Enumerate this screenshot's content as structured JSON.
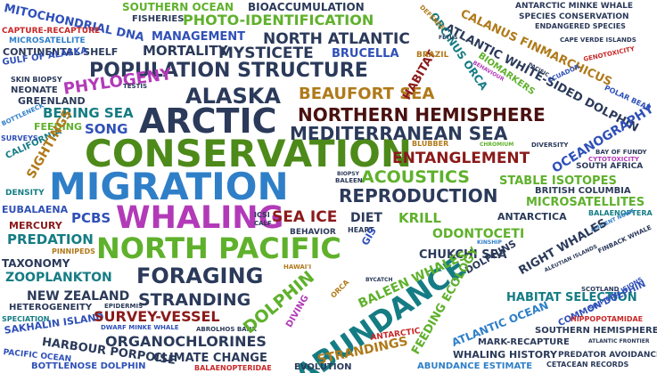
{
  "words": [
    {
      "text": "CONSERVATION",
      "color": "#4d8a1a"
    },
    {
      "text": "MIGRATION",
      "color": "#2f7fc8"
    },
    {
      "text": "ARCTIC",
      "color": "#2b3a5a"
    },
    {
      "text": "WHALING",
      "color": "#b23ab8"
    },
    {
      "text": "NORTH PACIFIC",
      "color": "#5fb12c"
    },
    {
      "text": "ABUNDANCE",
      "color": "#157c84"
    },
    {
      "text": "POPULATION STRUCTURE",
      "color": "#2b3a5a"
    },
    {
      "text": "NORTHERN HEMISPHERE",
      "color": "#4a1010"
    },
    {
      "text": "MEDITERRANEAN SEA",
      "color": "#2b3a5a"
    },
    {
      "text": "ALASKA",
      "color": "#2b3a5a"
    },
    {
      "text": "FORAGING",
      "color": "#2b3a5a"
    },
    {
      "text": "REPRODUCTION",
      "color": "#2b3a5a"
    },
    {
      "text": "ENTANGLEMENT",
      "color": "#8b1a1a"
    },
    {
      "text": "ACOUSTICS",
      "color": "#5fb12c"
    },
    {
      "text": "BEAUFORT SEA",
      "color": "#b07a1a"
    },
    {
      "text": "PHYLOGENY",
      "color": "#b23ab8"
    },
    {
      "text": "MYSTICETE",
      "color": "#2b3a5a"
    },
    {
      "text": "NORTH ATLANTIC",
      "color": "#2b3a5a"
    },
    {
      "text": "MORTALITY",
      "color": "#2b3a5a"
    },
    {
      "text": "PHOTO-IDENTIFICATION",
      "color": "#5fb12c"
    },
    {
      "text": "MANAGEMENT",
      "color": "#2f50b8"
    },
    {
      "text": "BIOACCUMULATION",
      "color": "#2b3a5a"
    },
    {
      "text": "SOUTHERN OCEAN",
      "color": "#5fb12c"
    },
    {
      "text": "FISHERIES",
      "color": "#2b3a5a"
    },
    {
      "text": "MITOCHONDRIAL DNA",
      "color": "#2f50b8"
    },
    {
      "text": "CAPTURE-RECAPTURE",
      "color": "#c82828"
    },
    {
      "text": "MICROSATELLITE",
      "color": "#2f7fc8"
    },
    {
      "text": "CONTINENTAL SHELF",
      "color": "#2b3a5a"
    },
    {
      "text": "GULF OF ALASKA",
      "color": "#2f50b8"
    },
    {
      "text": "BRUCELLA",
      "color": "#2f50b8"
    },
    {
      "text": "SKIN BIOPSY",
      "color": "#2b3a5a"
    },
    {
      "text": "NEONATE",
      "color": "#2b3a5a"
    },
    {
      "text": "GREENLAND",
      "color": "#2b3a5a"
    },
    {
      "text": "TESTIS",
      "color": "#2b3a5a"
    },
    {
      "text": "BERING SEA",
      "color": "#157c84"
    },
    {
      "text": "SONG",
      "color": "#2f50b8"
    },
    {
      "text": "FEEDING",
      "color": "#5fb12c"
    },
    {
      "text": "BOTTLENECK",
      "color": "#2f7fc8"
    },
    {
      "text": "CALIFORNIA",
      "color": "#157c84"
    },
    {
      "text": "SURVEYS",
      "color": "#2f50b8"
    },
    {
      "text": "SIGHTINGS",
      "color": "#b07a1a"
    },
    {
      "text": "DENSITY",
      "color": "#157c84"
    },
    {
      "text": "EUBALAENA",
      "color": "#2f50b8"
    },
    {
      "text": "PCBS",
      "color": "#2f50b8"
    },
    {
      "text": "MERCURY",
      "color": "#8b1a1a"
    },
    {
      "text": "PREDATION",
      "color": "#157c84"
    },
    {
      "text": "PINNIPEDS",
      "color": "#b07a1a"
    },
    {
      "text": "TAXONOMY",
      "color": "#2b3a5a"
    },
    {
      "text": "ZOOPLANKTON",
      "color": "#157c84"
    },
    {
      "text": "NEW ZEALAND",
      "color": "#2b3a5a"
    },
    {
      "text": "HETEROGENEITY",
      "color": "#2b3a5a"
    },
    {
      "text": "SPECIATION",
      "color": "#157c84"
    },
    {
      "text": "SAKHALIN ISLAND",
      "color": "#2f50b8"
    },
    {
      "text": "HARBOUR PORPOISE",
      "color": "#2b3a5a"
    },
    {
      "text": "PACIFIC OCEAN",
      "color": "#2f50b8"
    },
    {
      "text": "BOTTLENOSE DOLPHIN",
      "color": "#2f50b8"
    },
    {
      "text": "STRANDING",
      "color": "#2b3a5a"
    },
    {
      "text": "EPIDERMIS",
      "color": "#2b3a5a"
    },
    {
      "text": "SURVEY-VESSEL",
      "color": "#8b1a1a"
    },
    {
      "text": "DWARF MINKE WHALE",
      "color": "#2f50b8"
    },
    {
      "text": "ABROLHOS BANK",
      "color": "#2b3a5a"
    },
    {
      "text": "ORGANOCHLORINES",
      "color": "#2b3a5a"
    },
    {
      "text": "CLIMATE CHANGE",
      "color": "#2b3a5a"
    },
    {
      "text": "BALAENOPTERIDAE",
      "color": "#c82828"
    },
    {
      "text": "EVOLUTION",
      "color": "#2b3a5a"
    },
    {
      "text": "STRANDINGS",
      "color": "#b07a1a"
    },
    {
      "text": "ICSI",
      "color": "#2b3a5a"
    },
    {
      "text": "CALF",
      "color": "#2b3a5a"
    },
    {
      "text": "SEA ICE",
      "color": "#8b1a1a"
    },
    {
      "text": "DIET",
      "color": "#2b3a5a"
    },
    {
      "text": "KRILL",
      "color": "#5fb12c"
    },
    {
      "text": "BEHAVIOR",
      "color": "#2b3a5a"
    },
    {
      "text": "HEART",
      "color": "#2b3a5a"
    },
    {
      "text": "GIS",
      "color": "#2f50b8"
    },
    {
      "text": "BIOPSY",
      "color": "#2b3a5a"
    },
    {
      "text": "BALEEN",
      "color": "#2b3a5a"
    },
    {
      "text": "BLUBBER",
      "color": "#b07a1a"
    },
    {
      "text": "CHROMIUM",
      "color": "#5fb12c"
    },
    {
      "text": "DIVERSITY",
      "color": "#2b3a5a"
    },
    {
      "text": "STABLE ISOTOPES",
      "color": "#5fb12c"
    },
    {
      "text": "BRITISH COLUMBIA",
      "color": "#2b3a5a"
    },
    {
      "text": "MICROSATELLITES",
      "color": "#5fb12c"
    },
    {
      "text": "ANTARCTICA",
      "color": "#2b3a5a"
    },
    {
      "text": "BALAENOPTERA",
      "color": "#157c84"
    },
    {
      "text": "ODONTOCETI",
      "color": "#5fb12c"
    },
    {
      "text": "AMBIENT NOISE",
      "color": "#2f7fc8"
    },
    {
      "text": "KINSHIP",
      "color": "#2f7fc8"
    },
    {
      "text": "CHUKCHI SEA",
      "color": "#2b3a5a"
    },
    {
      "text": "RIGHT WHALES",
      "color": "#2b3a5a"
    },
    {
      "text": "DOLPHINS",
      "color": "#2b3a5a"
    },
    {
      "text": "FINBACK WHALE",
      "color": "#2b3a5a"
    },
    {
      "text": "ALEUTIAN ISLANDS",
      "color": "#2b3a5a"
    },
    {
      "text": "HABITAT SELECTION",
      "color": "#157c84"
    },
    {
      "text": "BALEEN WHALES",
      "color": "#5fb12c"
    },
    {
      "text": "DOLPHIN",
      "color": "#5fb12c"
    },
    {
      "text": "HAWAI'I",
      "color": "#b07a1a"
    },
    {
      "text": "BYCATCH",
      "color": "#2b3a5a"
    },
    {
      "text": "DIVING",
      "color": "#b23ab8"
    },
    {
      "text": "ORCA",
      "color": "#b07a1a"
    },
    {
      "text": "FEEDING ECOLOGY",
      "color": "#5fb12c"
    },
    {
      "text": "ATLANTIC OCEAN",
      "color": "#2f7fc8"
    },
    {
      "text": "COMMON DOLPHIN",
      "color": "#2f50b8"
    },
    {
      "text": "SCOTLAND",
      "color": "#2b3a5a"
    },
    {
      "text": "SHIP COLLISIONS",
      "color": "#2f50b8"
    },
    {
      "text": "HIPPOPOTAMIDAE",
      "color": "#c82828"
    },
    {
      "text": "SOUTHERN HEMISPHERE",
      "color": "#2b3a5a"
    },
    {
      "text": "MARK-RECAPTURE",
      "color": "#2b3a5a"
    },
    {
      "text": "ATLANTIC FRONTIER",
      "color": "#2b3a5a"
    },
    {
      "text": "WHALING HISTORY",
      "color": "#2b3a5a"
    },
    {
      "text": "PREDATOR AVOIDANCE",
      "color": "#2b3a5a"
    },
    {
      "text": "ABUNDANCE ESTIMATE",
      "color": "#2f7fc8"
    },
    {
      "text": "CETACEAN RECORDS",
      "color": "#2b3a5a"
    },
    {
      "text": "ANTARCTIC",
      "color": "#c82828"
    },
    {
      "text": "ANTARCTIC MINKE WHALE",
      "color": "#2b3a5a"
    },
    {
      "text": "SPECIES CONSERVATION",
      "color": "#2b3a5a"
    },
    {
      "text": "ENDANGERED SPECIES",
      "color": "#2b3a5a"
    },
    {
      "text": "CALANUS FINMARCHICUS",
      "color": "#b07a1a"
    },
    {
      "text": "ATLANTIC WHITE-SIDED DOLPHIN",
      "color": "#2b3a5a"
    },
    {
      "text": "ORCINUS ORCA",
      "color": "#157c84"
    },
    {
      "text": "DEFENCE",
      "color": "#b07a1a"
    },
    {
      "text": "FETUS",
      "color": "#2b3a5a"
    },
    {
      "text": "BEHAVIOUR",
      "color": "#b23ab8"
    },
    {
      "text": "BIOMARKERS",
      "color": "#5fb12c"
    },
    {
      "text": "PACIFIC",
      "color": "#2b3a5a"
    },
    {
      "text": "ECUADOR",
      "color": "#2f50b8"
    },
    {
      "text": "CAPE VERDE ISLANDS",
      "color": "#2b3a5a"
    },
    {
      "text": "GENOTOXICITY",
      "color": "#c82828"
    },
    {
      "text": "POLAR BEAR",
      "color": "#2f50b8"
    },
    {
      "text": "HABITAT",
      "color": "#8b1a1a"
    },
    {
      "text": "BRAZIL",
      "color": "#b07a1a"
    },
    {
      "text": "OCEANOGRAPHY",
      "color": "#2f50b8"
    },
    {
      "text": "BAY OF FUNDY",
      "color": "#2b3a5a"
    },
    {
      "text": "CYTOTOXICITY",
      "color": "#b23ab8"
    },
    {
      "text": "SOUTH AFRICA",
      "color": "#2b3a5a"
    }
  ]
}
